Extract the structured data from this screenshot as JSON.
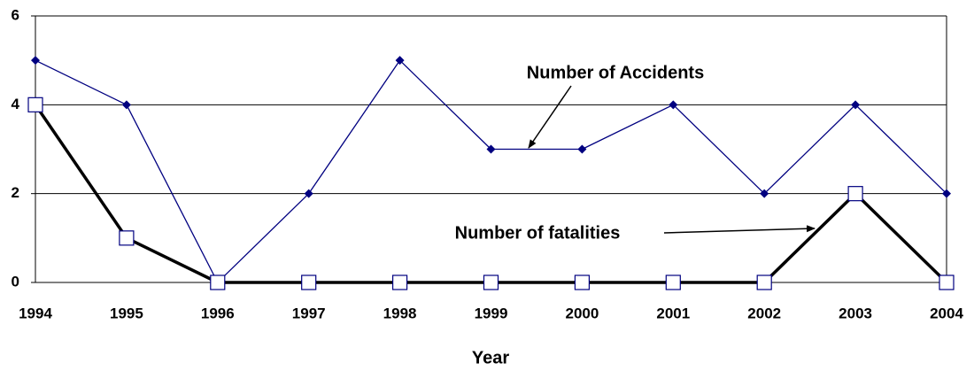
{
  "chart_data": {
    "type": "line",
    "categories": [
      "1994",
      "1995",
      "1996",
      "1997",
      "1998",
      "1999",
      "2000",
      "2001",
      "2002",
      "2003",
      "2004"
    ],
    "series": [
      {
        "name": "Number of Accidents",
        "color": "#000080",
        "values": [
          5,
          4,
          0,
          2,
          5,
          3,
          3,
          4,
          2,
          4,
          2
        ]
      },
      {
        "name": "Number of fatalities",
        "color": "#000000",
        "values": [
          4,
          1,
          0,
          0,
          0,
          0,
          0,
          0,
          0,
          2,
          0
        ]
      }
    ],
    "x_label": "Year",
    "ylim": [
      0,
      6
    ],
    "yticks": [
      0,
      2,
      4,
      6
    ],
    "grid": true
  }
}
